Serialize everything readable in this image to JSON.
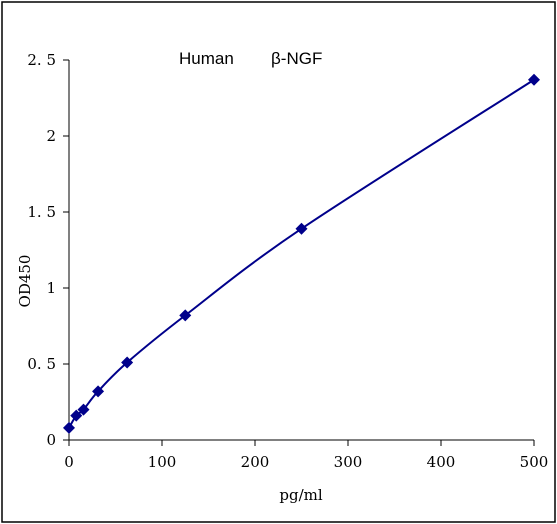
{
  "chart_data": {
    "type": "scatter",
    "title_parts": [
      "Human",
      "β-NGF"
    ],
    "xlabel": "pg/ml",
    "ylabel": "OD450",
    "xlim": [
      0,
      500
    ],
    "ylim": [
      0,
      2.5
    ],
    "x_ticks": [
      "0",
      "100",
      "200",
      "300",
      "400",
      "500"
    ],
    "y_ticks": [
      "0",
      "0. 5",
      "1",
      "1. 5",
      "2",
      "2. 5"
    ],
    "grid": false,
    "series": [
      {
        "color": "#00008b",
        "marker": "diamond",
        "line": "smooth",
        "x": [
          0,
          7.8,
          15.6,
          31.25,
          62.5,
          125,
          250,
          500
        ],
        "y": [
          0.08,
          0.16,
          0.2,
          0.32,
          0.51,
          0.82,
          1.39,
          2.37
        ]
      }
    ]
  }
}
